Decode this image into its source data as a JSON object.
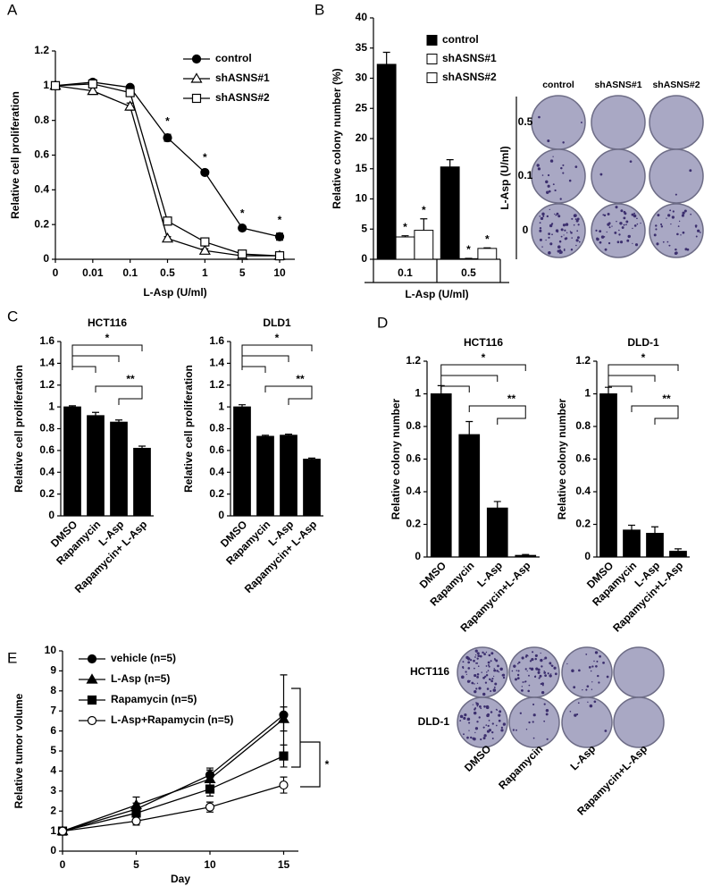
{
  "chart_data": [
    {
      "type": "line",
      "panel": "A",
      "categories": [
        "0",
        "0.01",
        "0.1",
        "0.5",
        "1",
        "5",
        "10"
      ],
      "xlabel": "L-Asp (U/ml)",
      "ylabel": "Relative cell proliferation",
      "ylim": [
        0,
        1.2
      ],
      "yticks": [
        0,
        0.2,
        0.4,
        0.6,
        0.8,
        1,
        1.2
      ],
      "series": [
        {
          "name": "control",
          "marker": "circle",
          "fill": "#000000",
          "values": [
            1,
            1.02,
            0.99,
            0.7,
            0.5,
            0.18,
            0.13
          ],
          "error": [
            0.01,
            0.01,
            0.01,
            0.02,
            0.01,
            0.01,
            0.02
          ]
        },
        {
          "name": "shASNS#1",
          "marker": "triangle",
          "fill": "#ffffff",
          "values": [
            1,
            0.97,
            0.88,
            0.12,
            0.05,
            0.02,
            0.02
          ],
          "error": [
            0.01,
            0.02,
            0.02,
            0.01,
            0.01,
            0.005,
            0.005
          ]
        },
        {
          "name": "shASNS#2",
          "marker": "square",
          "fill": "#ffffff",
          "values": [
            1,
            1.01,
            0.96,
            0.22,
            0.1,
            0.03,
            0.02
          ],
          "error": [
            0.01,
            0.01,
            0.01,
            0.01,
            0.01,
            0.005,
            0.005
          ]
        }
      ],
      "annotations": [
        null,
        null,
        null,
        "*",
        "*",
        "*",
        "*"
      ]
    },
    {
      "type": "bar",
      "panel": "B",
      "categories": [
        "0.1",
        "0.5"
      ],
      "xlabel": "L-Asp (U/ml)",
      "ylabel": "Relative colony number (%)",
      "ylim": [
        0,
        40
      ],
      "yticks": [
        0,
        5,
        10,
        15,
        20,
        25,
        30,
        35,
        40
      ],
      "series": [
        {
          "name": "control",
          "color": "#000000",
          "values": [
            32.3,
            15.3
          ],
          "error": [
            2.0,
            1.2
          ]
        },
        {
          "name": "shASNS#1",
          "color": "#ffffff",
          "values": [
            3.7,
            0.1
          ],
          "error": [
            0.2,
            0.05
          ],
          "annotations": [
            "*",
            "*"
          ]
        },
        {
          "name": "shASNS#2",
          "color": "#ffffff",
          "values": [
            4.8,
            1.8
          ],
          "error": [
            1.9,
            0.1
          ],
          "annotations": [
            "*",
            "*"
          ]
        }
      ],
      "plates": {
        "columns": [
          "control",
          "shASNS#1",
          "shASNS#2"
        ],
        "rows": [
          "0.5",
          "0.1",
          "0"
        ],
        "axis_label": "L-Asp (U/ml)"
      }
    },
    {
      "type": "bar",
      "panel": "C",
      "title": "HCT116",
      "categories": [
        "DMSO",
        "Rapamycin",
        "L-Asp",
        "Rapamycin+ L-Asp"
      ],
      "ylabel": "Relative cell proliferation",
      "ylim": [
        0,
        1.6
      ],
      "yticks": [
        0,
        0.2,
        0.4,
        0.6,
        0.8,
        1,
        1.2,
        1.4,
        1.6
      ],
      "color": "#000000",
      "values": [
        1.0,
        0.92,
        0.86,
        0.62
      ],
      "error": [
        0.01,
        0.03,
        0.02,
        0.02
      ],
      "significance": [
        "*",
        "**"
      ]
    },
    {
      "type": "bar",
      "title": "DLD1",
      "categories": [
        "DMSO",
        "Rapamycin",
        "L-Asp",
        "Rapamycin+ L-Asp"
      ],
      "ylabel": "Relative cell proliferation",
      "ylim": [
        0,
        1.6
      ],
      "yticks": [
        0,
        0.2,
        0.4,
        0.6,
        0.8,
        1,
        1.2,
        1.4,
        1.6
      ],
      "color": "#000000",
      "values": [
        1.0,
        0.73,
        0.74,
        0.52
      ],
      "error": [
        0.02,
        0.01,
        0.01,
        0.01
      ],
      "significance": [
        "*",
        "**"
      ]
    },
    {
      "type": "bar",
      "panel": "D",
      "title": "HCT116",
      "categories": [
        "DMSO",
        "Rapamycin",
        "L-Asp",
        "Rapamycin+L-Asp"
      ],
      "ylabel": "Relative colony number",
      "ylim": [
        0,
        1.2
      ],
      "yticks": [
        0,
        0.2,
        0.4,
        0.6,
        0.8,
        1,
        1.2
      ],
      "color": "#000000",
      "values": [
        1.0,
        0.75,
        0.3,
        0.01
      ],
      "error": [
        0.05,
        0.08,
        0.04,
        0.005
      ],
      "significance": [
        "*",
        "**"
      ],
      "plates": {
        "columns": [
          "DMSO",
          "Rapamycin",
          "L-Asp",
          "Rapamycin+L-Asp"
        ],
        "rows": [
          "HCT116",
          "DLD-1"
        ]
      }
    },
    {
      "type": "bar",
      "title": "DLD-1",
      "categories": [
        "DMSO",
        "Rapamycin",
        "L-Asp",
        "Rapamycin+L-Asp"
      ],
      "ylabel": "Relative colony number",
      "ylim": [
        0,
        1.2
      ],
      "yticks": [
        0,
        0.2,
        0.4,
        0.6,
        0.8,
        1,
        1.2
      ],
      "color": "#000000",
      "values": [
        1.0,
        0.165,
        0.145,
        0.035
      ],
      "error": [
        0.04,
        0.03,
        0.04,
        0.015
      ],
      "significance": [
        "*",
        "**"
      ]
    },
    {
      "type": "line",
      "panel": "E",
      "x": [
        0,
        5,
        10,
        15
      ],
      "xlim": [
        0,
        16
      ],
      "xticks": [
        0,
        5,
        10,
        15
      ],
      "xlabel": "Day",
      "ylabel": "Relative tumor volume",
      "ylim": [
        0,
        10
      ],
      "yticks": [
        0,
        1,
        2,
        3,
        4,
        5,
        6,
        7,
        8,
        9,
        10
      ],
      "series": [
        {
          "name": "vehicle (n=5)",
          "marker": "circle",
          "fill": "#000000",
          "values": [
            1,
            2.1,
            3.8,
            6.8
          ],
          "error": [
            0,
            0.3,
            0.35,
            2.0
          ]
        },
        {
          "name": "L-Asp (n=5)",
          "marker": "triangle",
          "fill": "#000000",
          "values": [
            1,
            2.3,
            3.6,
            6.6
          ],
          "error": [
            0,
            0.4,
            0.45,
            0.6
          ]
        },
        {
          "name": "Rapamycin (n=5)",
          "marker": "square",
          "fill": "#000000",
          "values": [
            1,
            1.9,
            3.1,
            4.75
          ],
          "error": [
            0,
            0.3,
            0.35,
            0.55
          ]
        },
        {
          "name": "L-Asp+Rapamycin (n=5)",
          "marker": "circle",
          "fill": "#ffffff",
          "values": [
            1,
            1.5,
            2.2,
            3.3
          ],
          "error": [
            0,
            0.2,
            0.25,
            0.4
          ]
        }
      ],
      "annotations": [
        "*"
      ]
    }
  ]
}
